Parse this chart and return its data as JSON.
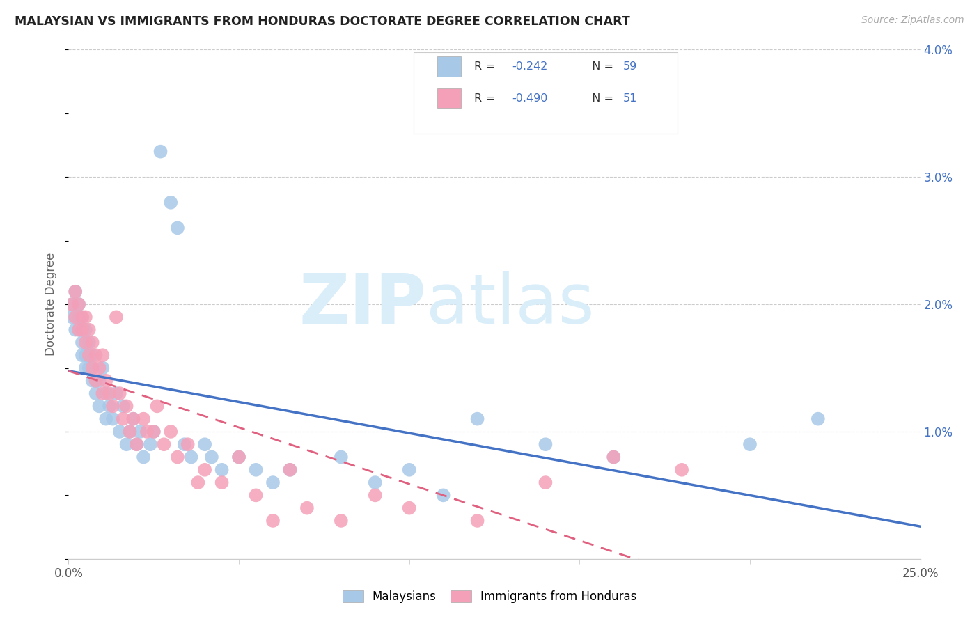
{
  "title": "MALAYSIAN VS IMMIGRANTS FROM HONDURAS DOCTORATE DEGREE CORRELATION CHART",
  "source": "Source: ZipAtlas.com",
  "ylabel": "Doctorate Degree",
  "legend_label1": "Malaysians",
  "legend_label2": "Immigrants from Honduras",
  "legend_r1": "-0.242",
  "legend_n1": "59",
  "legend_r2": "-0.490",
  "legend_n2": "51",
  "color_blue": "#a8c8e8",
  "color_pink": "#f4a0b8",
  "color_blue_line": "#4472c4",
  "color_pink_line": "#e06080",
  "color_axis": "#4472c4",
  "color_title": "#222222",
  "color_source": "#aaaaaa",
  "color_r_label": "#333333",
  "color_n_value": "#4472c4",
  "watermark_zip": "ZIP",
  "watermark_atlas": "atlas",
  "watermark_color": "#daeefa",
  "xlim": [
    0.0,
    0.25
  ],
  "ylim": [
    0.0,
    0.04
  ],
  "yticks": [
    0.0,
    0.01,
    0.02,
    0.03,
    0.04
  ],
  "ytick_labels": [
    "",
    "1.0%",
    "2.0%",
    "3.0%",
    "4.0%"
  ],
  "xtick_positions": [
    0.0,
    0.25
  ],
  "xtick_labels": [
    "0.0%",
    "25.0%"
  ],
  "malaysians_x": [
    0.001,
    0.001,
    0.002,
    0.002,
    0.003,
    0.003,
    0.003,
    0.004,
    0.004,
    0.004,
    0.005,
    0.005,
    0.005,
    0.006,
    0.006,
    0.007,
    0.007,
    0.007,
    0.008,
    0.008,
    0.009,
    0.009,
    0.01,
    0.011,
    0.011,
    0.012,
    0.013,
    0.014,
    0.015,
    0.016,
    0.017,
    0.018,
    0.019,
    0.02,
    0.021,
    0.022,
    0.024,
    0.025,
    0.027,
    0.03,
    0.032,
    0.034,
    0.036,
    0.04,
    0.042,
    0.045,
    0.05,
    0.055,
    0.06,
    0.065,
    0.08,
    0.09,
    0.1,
    0.11,
    0.12,
    0.14,
    0.16,
    0.2,
    0.22
  ],
  "malaysians_y": [
    0.02,
    0.019,
    0.021,
    0.018,
    0.02,
    0.019,
    0.018,
    0.017,
    0.016,
    0.019,
    0.018,
    0.016,
    0.015,
    0.017,
    0.015,
    0.016,
    0.014,
    0.015,
    0.013,
    0.014,
    0.014,
    0.012,
    0.015,
    0.013,
    0.011,
    0.012,
    0.011,
    0.013,
    0.01,
    0.012,
    0.009,
    0.01,
    0.011,
    0.009,
    0.01,
    0.008,
    0.009,
    0.01,
    0.032,
    0.028,
    0.026,
    0.009,
    0.008,
    0.009,
    0.008,
    0.007,
    0.008,
    0.007,
    0.006,
    0.007,
    0.008,
    0.006,
    0.007,
    0.005,
    0.011,
    0.009,
    0.008,
    0.009,
    0.011
  ],
  "honduras_x": [
    0.001,
    0.002,
    0.002,
    0.003,
    0.003,
    0.004,
    0.004,
    0.005,
    0.005,
    0.006,
    0.006,
    0.007,
    0.007,
    0.008,
    0.008,
    0.009,
    0.01,
    0.01,
    0.011,
    0.012,
    0.013,
    0.014,
    0.015,
    0.016,
    0.017,
    0.018,
    0.019,
    0.02,
    0.022,
    0.023,
    0.025,
    0.026,
    0.028,
    0.03,
    0.032,
    0.035,
    0.038,
    0.04,
    0.045,
    0.05,
    0.055,
    0.06,
    0.065,
    0.07,
    0.08,
    0.09,
    0.1,
    0.12,
    0.14,
    0.16,
    0.18
  ],
  "honduras_y": [
    0.02,
    0.021,
    0.019,
    0.02,
    0.018,
    0.019,
    0.018,
    0.019,
    0.017,
    0.018,
    0.016,
    0.017,
    0.015,
    0.016,
    0.014,
    0.015,
    0.016,
    0.013,
    0.014,
    0.013,
    0.012,
    0.019,
    0.013,
    0.011,
    0.012,
    0.01,
    0.011,
    0.009,
    0.011,
    0.01,
    0.01,
    0.012,
    0.009,
    0.01,
    0.008,
    0.009,
    0.006,
    0.007,
    0.006,
    0.008,
    0.005,
    0.003,
    0.007,
    0.004,
    0.003,
    0.005,
    0.004,
    0.003,
    0.006,
    0.008,
    0.007
  ]
}
